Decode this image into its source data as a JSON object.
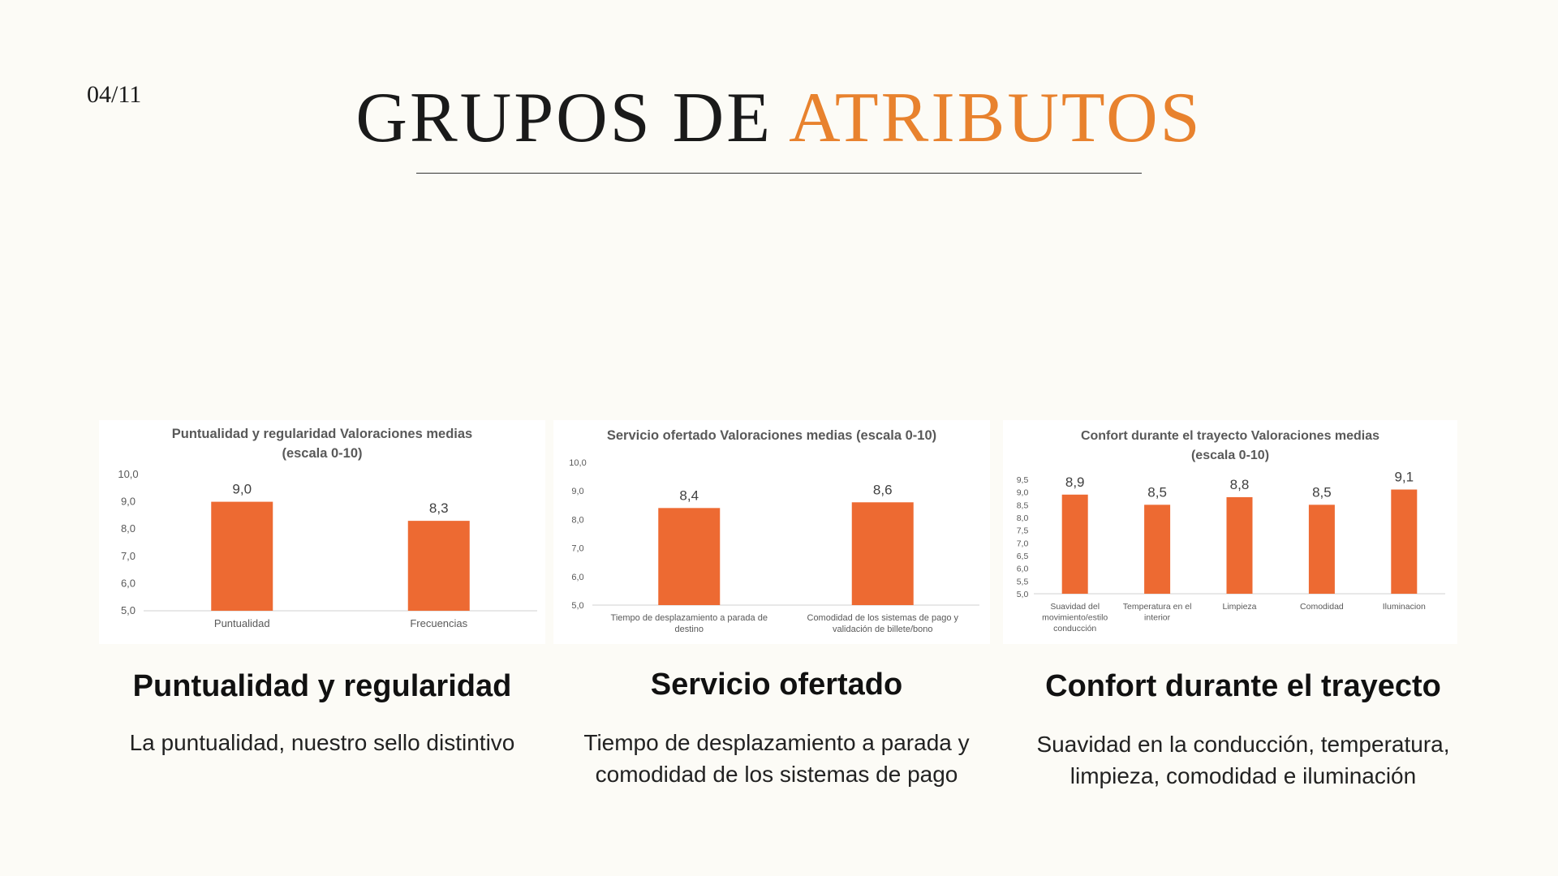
{
  "page": {
    "number": "04/11",
    "title_main": "GRUPOS DE ",
    "title_accent": "ATRIBUTOS",
    "accent_color": "#e8822e",
    "bar_color": "#ed6a32"
  },
  "groups": [
    {
      "heading": "Puntualidad y regularidad",
      "description": "La puntualidad, nuestro sello distintivo"
    },
    {
      "heading": "Servicio ofertado",
      "description": "Tiempo de desplazamiento a parada y comodidad de los sistemas de pago"
    },
    {
      "heading": "Confort durante el trayecto",
      "description": "Suavidad en la conducción, temperatura, limpieza, comodidad e iluminación"
    }
  ],
  "chart_data": [
    {
      "type": "bar",
      "title": "Puntualidad y regularidad Valoraciones medias (escala 0-10)",
      "categories": [
        "Puntualidad",
        "Frecuencias"
      ],
      "values": [
        9.0,
        8.3
      ],
      "data_labels": [
        "9,0",
        "8,3"
      ],
      "y_ticks": [
        "5,0",
        "6,0",
        "7,0",
        "8,0",
        "9,0",
        "10,0"
      ],
      "ylim": [
        5,
        10
      ],
      "xlabel": "",
      "ylabel": "",
      "grid": false,
      "legend": "none"
    },
    {
      "type": "bar",
      "title": "Servicio ofertado Valoraciones medias (escala 0-10)",
      "categories": [
        "Tiempo de desplazamiento a parada de destino",
        "Comodidad de los sistemas de pago y validación de billete/bono"
      ],
      "values": [
        8.4,
        8.6
      ],
      "data_labels": [
        "8,4",
        "8,6"
      ],
      "y_ticks": [
        "5,0",
        "6,0",
        "7,0",
        "8,0",
        "9,0",
        "10,0"
      ],
      "ylim": [
        5,
        10
      ],
      "xlabel": "",
      "ylabel": "",
      "grid": false,
      "legend": "none"
    },
    {
      "type": "bar",
      "title": "Confort durante el trayecto Valoraciones medias (escala 0-10)",
      "categories": [
        "Suavidad del movimiento/estilo conducción",
        "Temperatura en el interior",
        "Limpieza",
        "Comodidad",
        "Iluminacion"
      ],
      "values": [
        8.9,
        8.5,
        8.8,
        8.5,
        9.1
      ],
      "data_labels": [
        "8,9",
        "8,5",
        "8,8",
        "8,5",
        "9,1"
      ],
      "y_ticks": [
        "5,0",
        "5,5",
        "6,0",
        "6,5",
        "7,0",
        "7,5",
        "8,0",
        "8,5",
        "9,0",
        "9,5"
      ],
      "ylim": [
        5,
        9.5
      ],
      "xlabel": "",
      "ylabel": "",
      "grid": false,
      "legend": "none"
    }
  ]
}
